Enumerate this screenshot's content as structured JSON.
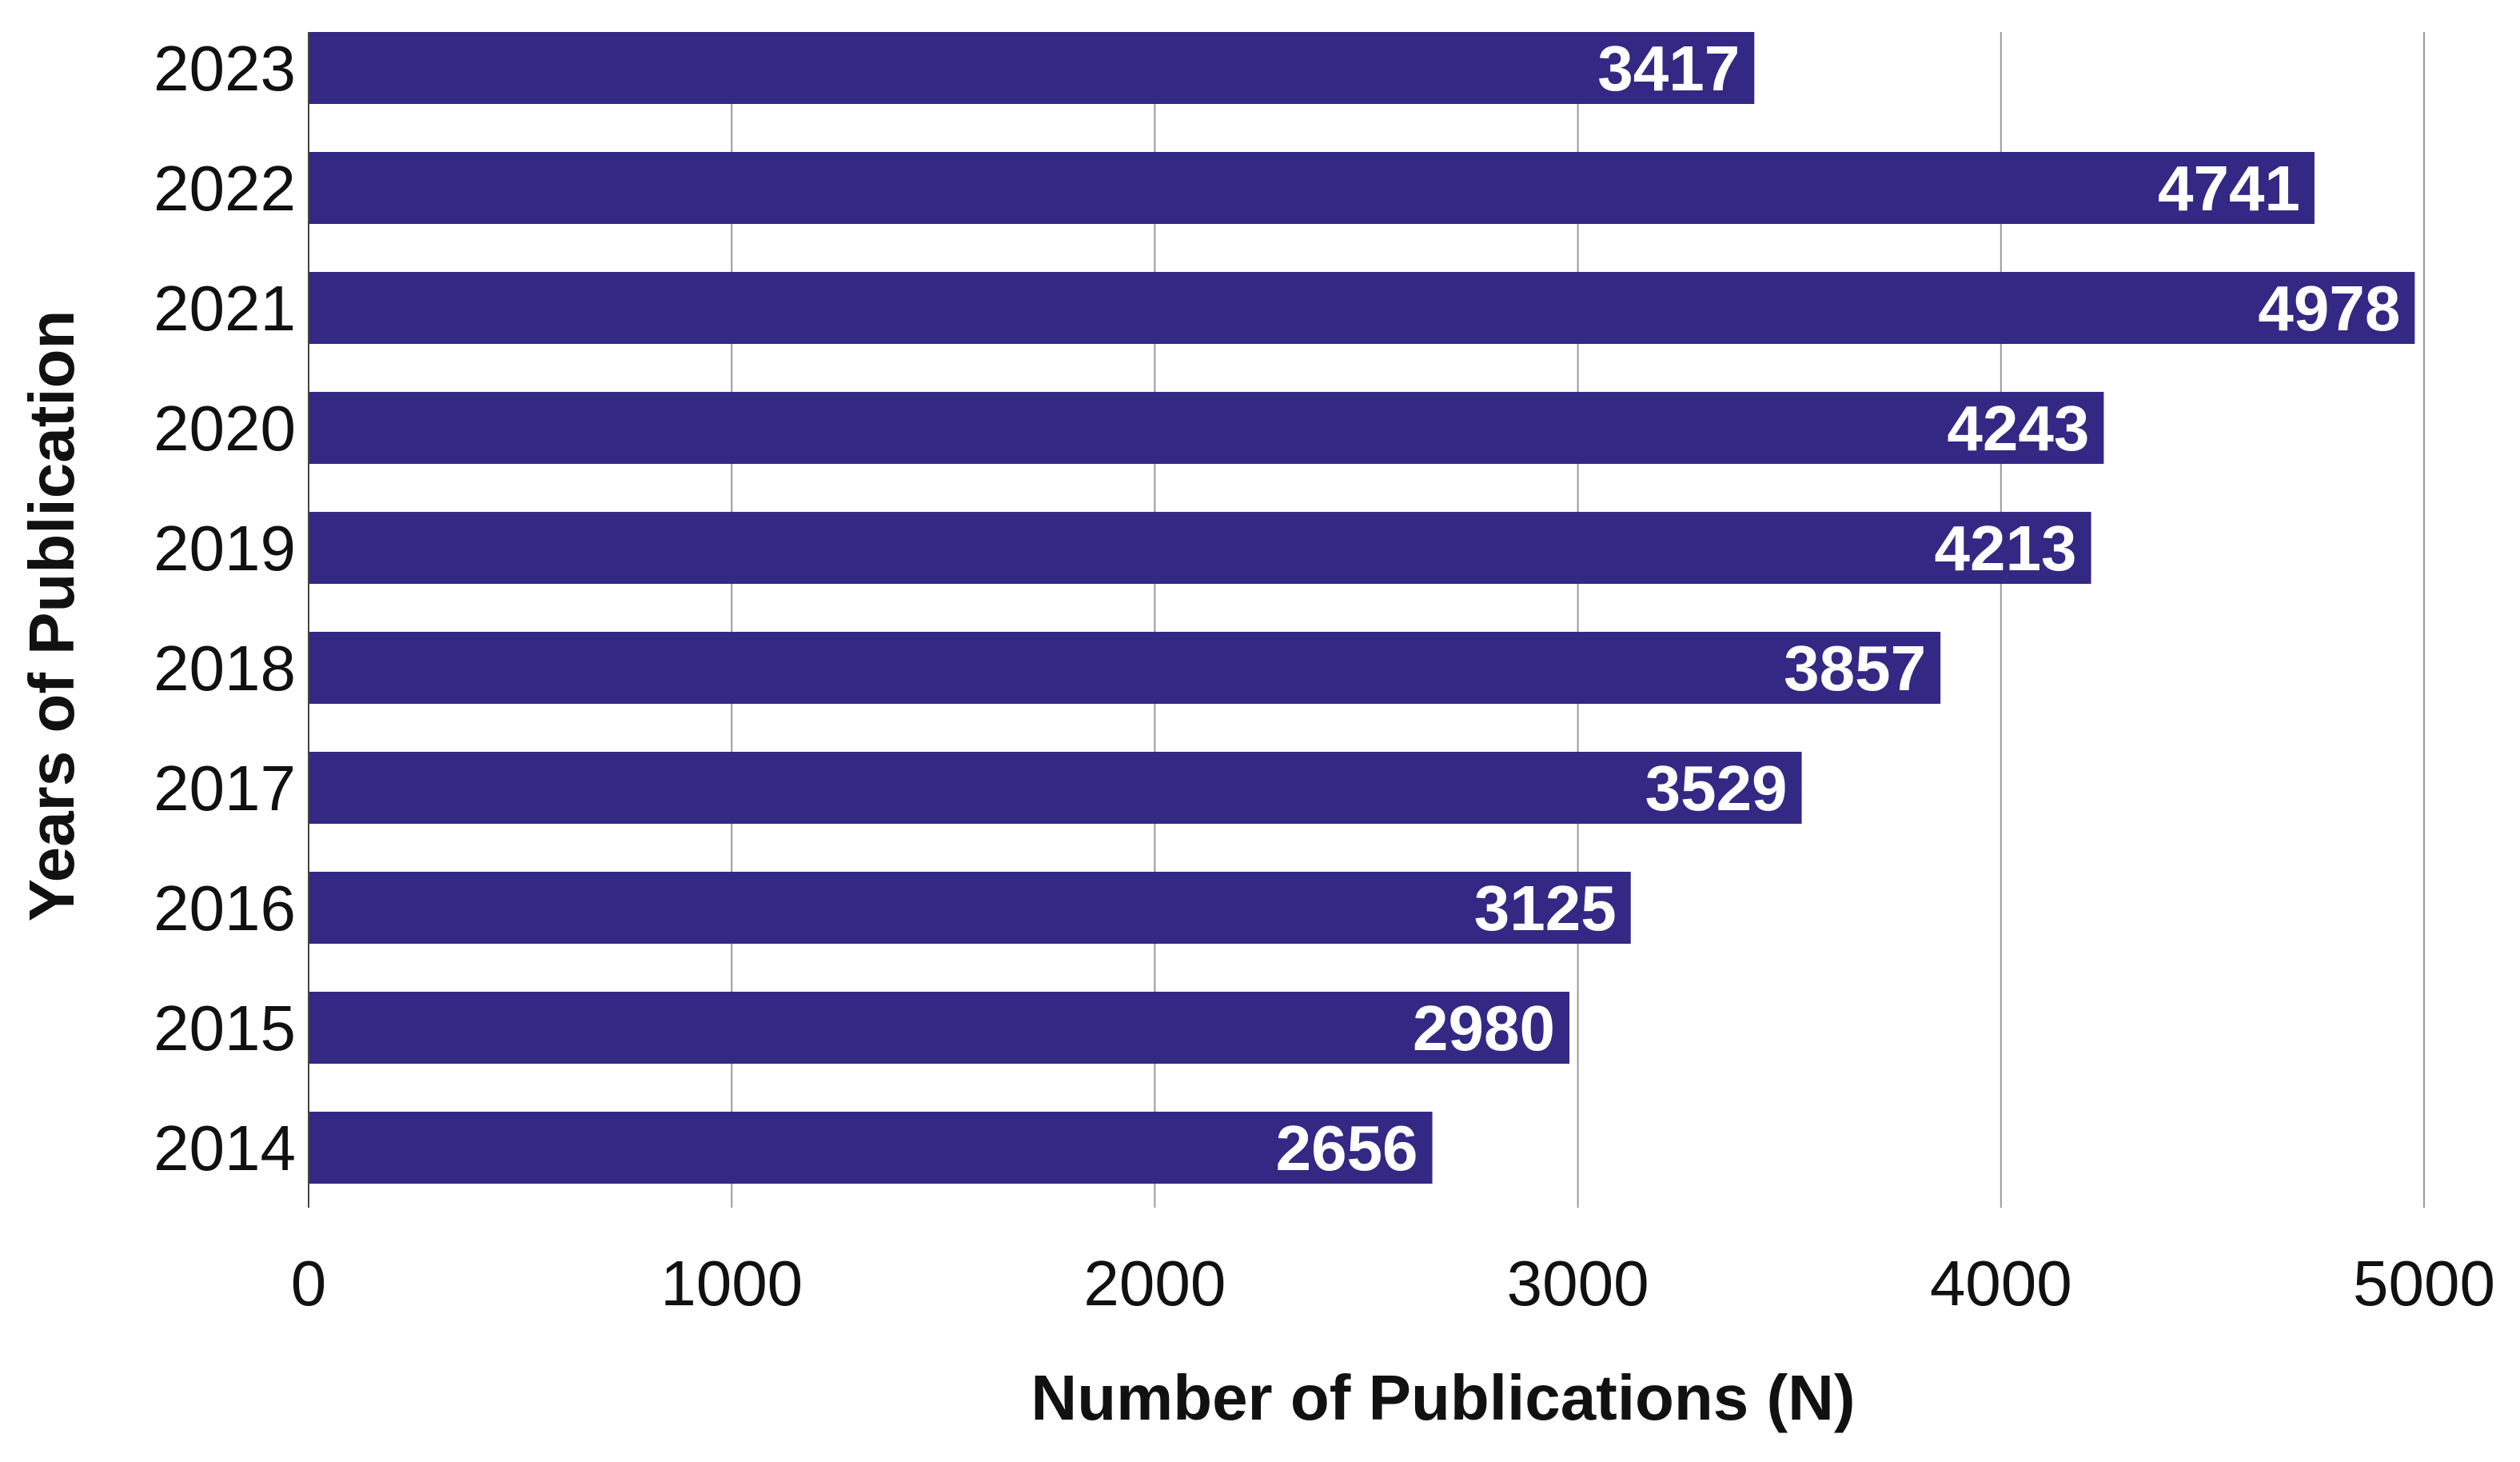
{
  "chart_data": {
    "type": "bar",
    "orientation": "horizontal",
    "categories": [
      "2023",
      "2022",
      "2021",
      "2020",
      "2019",
      "2018",
      "2017",
      "2016",
      "2015",
      "2014"
    ],
    "values": [
      3417,
      4741,
      4978,
      4243,
      4213,
      3857,
      3529,
      3125,
      2980,
      2656
    ],
    "data_labels": [
      "3417",
      "4741",
      "4978",
      "4243",
      "4213",
      "3857",
      "3529",
      "3125",
      "2980",
      "2656"
    ],
    "x_ticks": [
      0,
      1000,
      2000,
      3000,
      4000,
      5000
    ],
    "x_tick_labels": [
      "0",
      "1000",
      "2000",
      "3000",
      "4000",
      "5000"
    ],
    "xlim": [
      0,
      5000
    ],
    "title": "",
    "xlabel": "Number of Publications (N)",
    "ylabel": "Years of Publication",
    "grid": "vertical",
    "legend": "none",
    "colors": {
      "bar": "#332884",
      "grid": "#9a9a9a",
      "axis": "#444444",
      "label_text": "#ffffff",
      "tick_text": "#111111"
    }
  }
}
